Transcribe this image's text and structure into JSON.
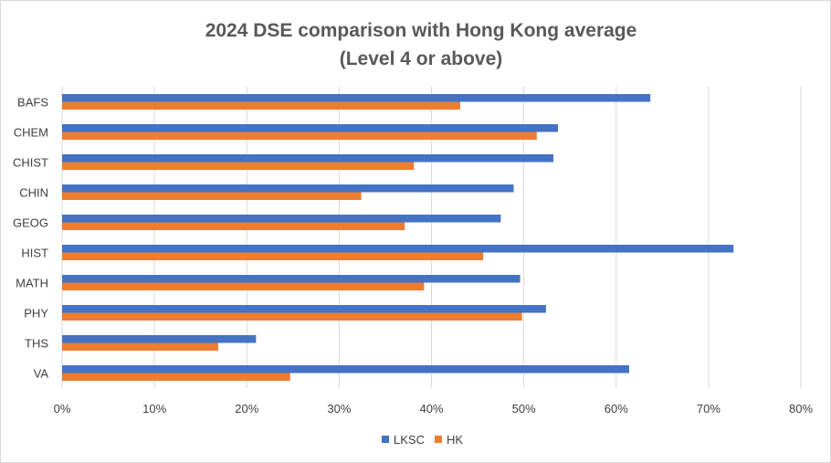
{
  "chart_data": {
    "type": "bar",
    "orientation": "horizontal",
    "title": "2024 DSE comparison with Hong Kong average",
    "subtitle": "(Level 4 or above)",
    "categories": [
      "BAFS",
      "CHEM",
      "CHIST",
      "CHIN",
      "GEOG",
      "HIST",
      "MATH",
      "PHY",
      "THS",
      "VA"
    ],
    "series": [
      {
        "name": "LKSC",
        "color": "#4472C4",
        "values": [
          63.7,
          53.7,
          53.2,
          48.9,
          47.5,
          72.7,
          49.6,
          52.4,
          21.0,
          61.4
        ]
      },
      {
        "name": "HK",
        "color": "#ED7D31",
        "values": [
          43.1,
          51.4,
          38.1,
          32.4,
          37.1,
          45.6,
          39.2,
          49.8,
          16.9,
          24.7
        ]
      }
    ],
    "xlim": [
      0,
      80
    ],
    "x_ticks": [
      "0%",
      "10%",
      "20%",
      "30%",
      "40%",
      "50%",
      "60%",
      "70%",
      "80%"
    ],
    "grid": true,
    "legend_position": "bottom",
    "gridline_color": "#d9d9d9"
  }
}
